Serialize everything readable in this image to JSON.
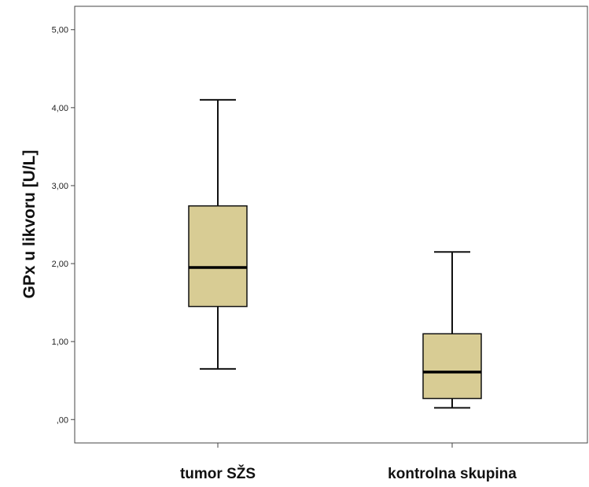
{
  "chart_data": {
    "type": "boxplot",
    "ylabel": "GPx u likvoru [U/L]",
    "xlabel": "",
    "ylim": [
      -0.3,
      5.3
    ],
    "yticks": [
      {
        "value": 0,
        "label": ",00"
      },
      {
        "value": 1,
        "label": "1,00"
      },
      {
        "value": 2,
        "label": "2,00"
      },
      {
        "value": 3,
        "label": "3,00"
      },
      {
        "value": 4,
        "label": "4,00"
      },
      {
        "value": 5,
        "label": "5,00"
      }
    ],
    "grid": false,
    "legend": "none",
    "box_color": "#d8cc94",
    "categories": [
      "tumor SŽS",
      "kontrolna skupina"
    ],
    "boxes": [
      {
        "category": "tumor SŽS",
        "min": 0.65,
        "q1": 1.45,
        "median": 1.95,
        "q3": 2.74,
        "max": 4.1
      },
      {
        "category": "kontrolna skupina",
        "min": 0.15,
        "q1": 0.27,
        "median": 0.61,
        "q3": 1.1,
        "max": 2.15
      }
    ]
  }
}
